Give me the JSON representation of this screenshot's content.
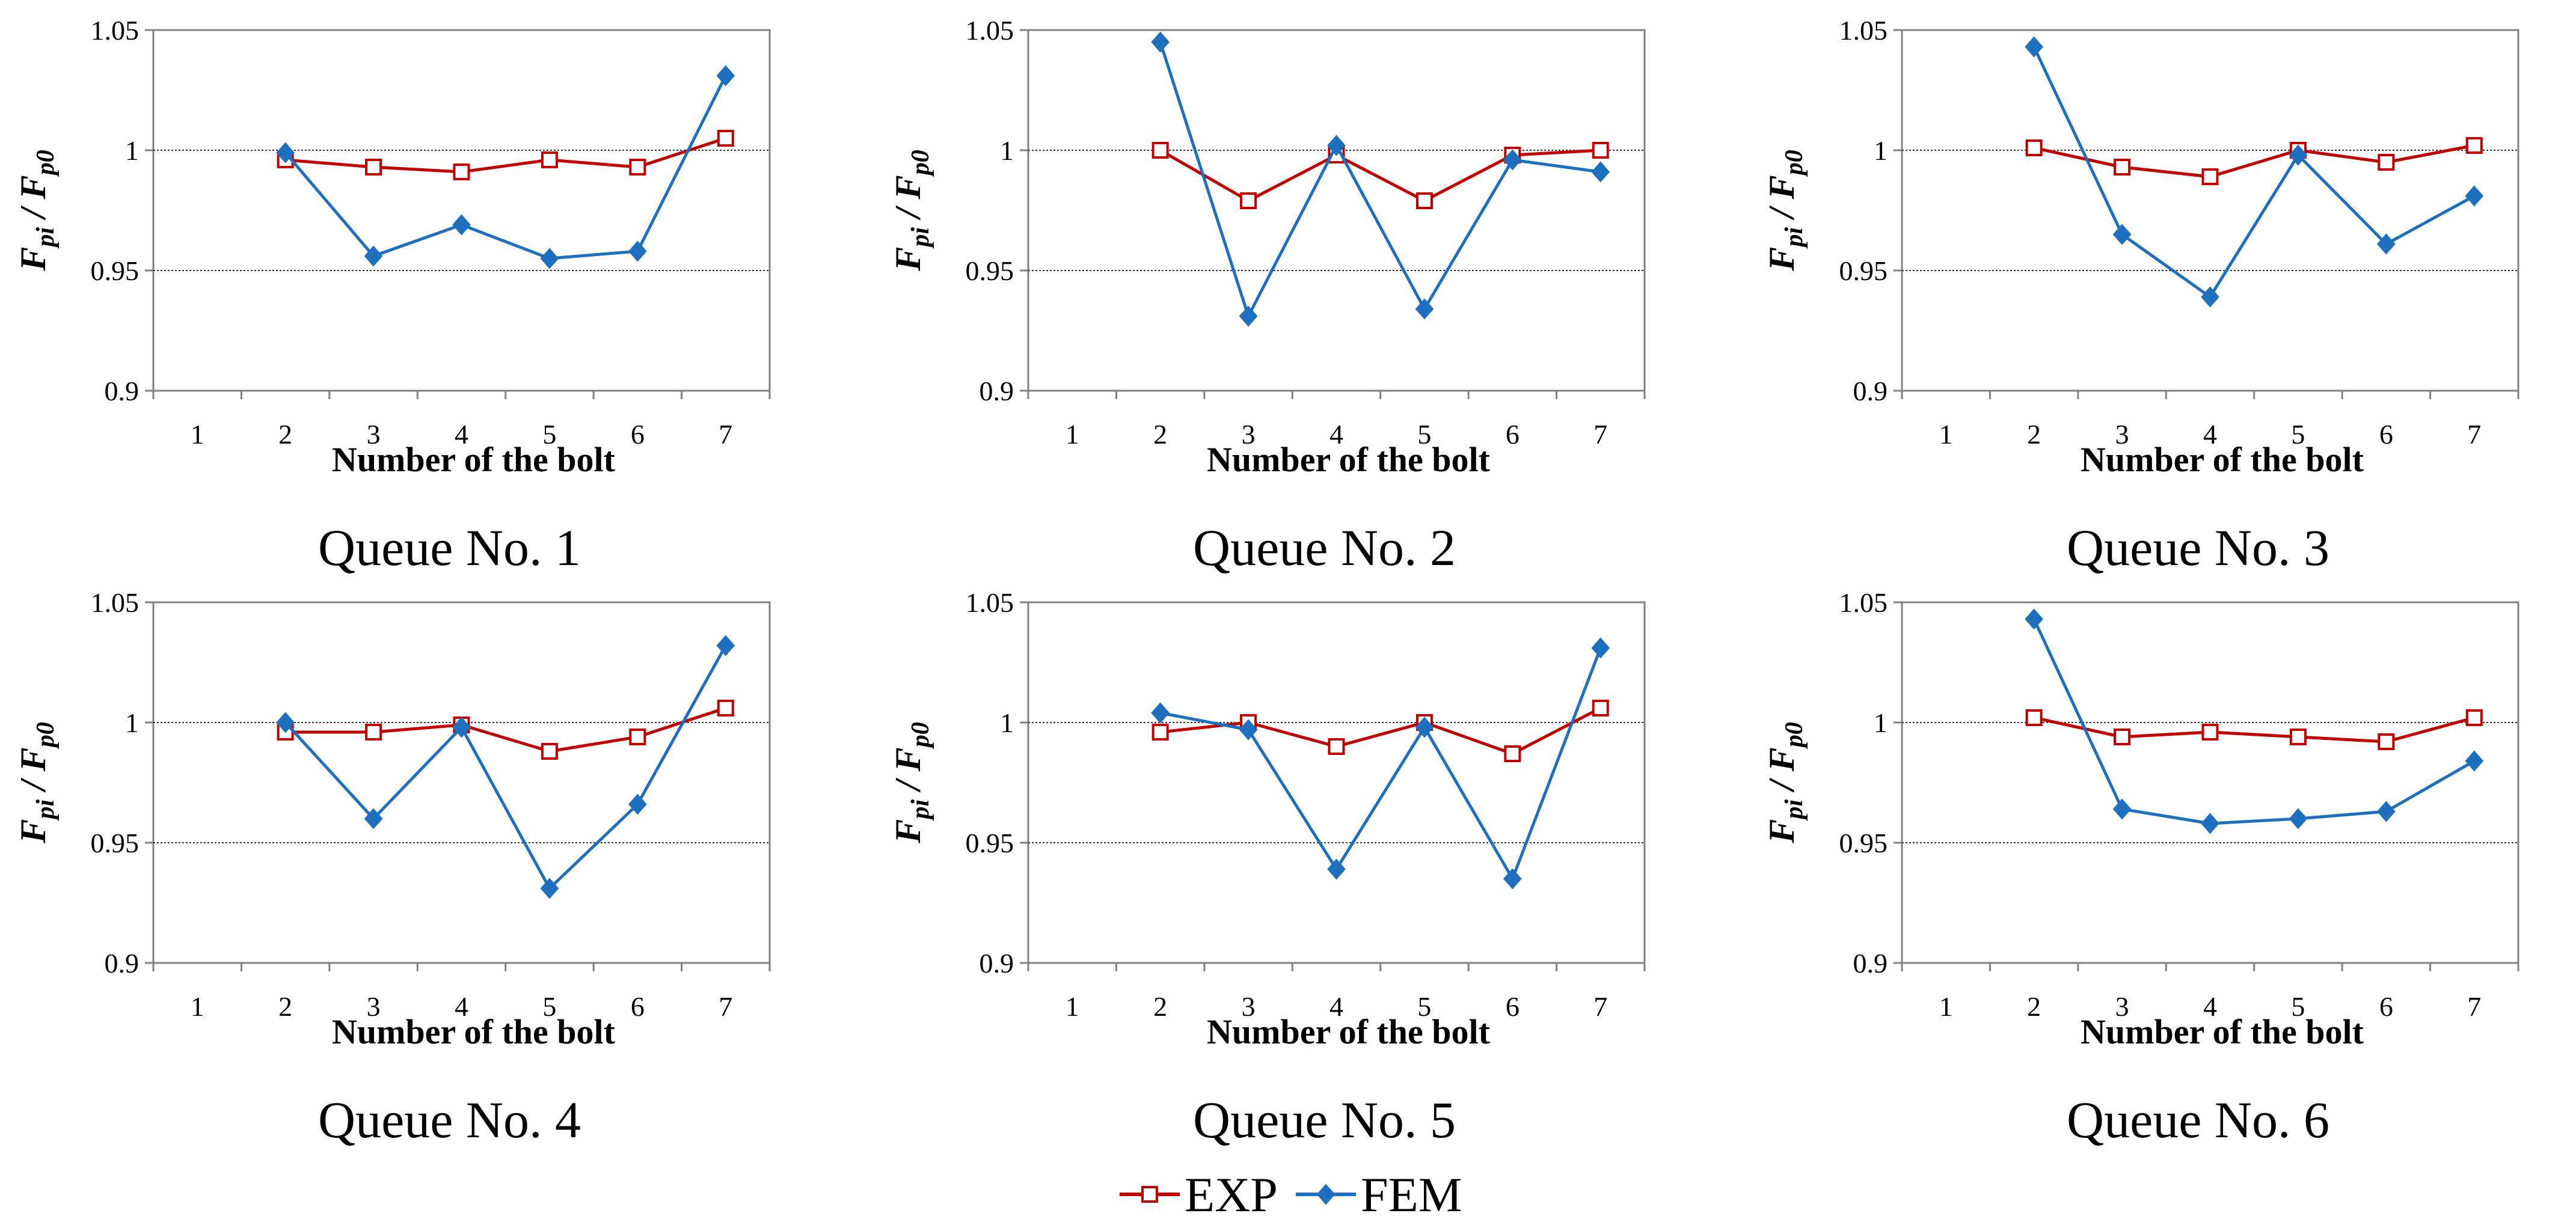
{
  "figure": {
    "legend": [
      {
        "label": "EXP",
        "color": "#c00000",
        "marker": "open-square"
      },
      {
        "label": "FEM",
        "color": "#1f6fbf",
        "marker": "filled-diamond"
      }
    ]
  },
  "chart_data": [
    {
      "type": "line",
      "title": "Queue No. 1",
      "xlabel": "Number of the bolt",
      "ylabel": "Fpi / Fp0",
      "ylabel_parts": [
        "F",
        "pi",
        " / ",
        "F",
        "p0"
      ],
      "categories": [
        "1",
        "2",
        "3",
        "4",
        "5",
        "6",
        "7"
      ],
      "yticks": [
        "0.9",
        "0.95",
        "1",
        "1.05"
      ],
      "ylim": [
        0.9,
        1.05
      ],
      "gridlines": [
        0.95,
        1.0
      ],
      "series": [
        {
          "name": "EXP",
          "color": "#c00000",
          "values": [
            null,
            0.996,
            0.993,
            0.991,
            0.996,
            0.993,
            1.005
          ]
        },
        {
          "name": "FEM",
          "color": "#1f6fbf",
          "values": [
            null,
            0.999,
            0.956,
            0.969,
            0.955,
            0.958,
            1.031
          ]
        }
      ]
    },
    {
      "type": "line",
      "title": "Queue No. 2",
      "xlabel": "Number of the bolt",
      "ylabel": "Fpi / Fp0",
      "ylabel_parts": [
        "F",
        "pi",
        " / ",
        "F",
        "p0"
      ],
      "categories": [
        "1",
        "2",
        "3",
        "4",
        "5",
        "6",
        "7"
      ],
      "yticks": [
        "0.9",
        "0.95",
        "1",
        "1.05"
      ],
      "ylim": [
        0.9,
        1.05
      ],
      "gridlines": [
        0.95,
        1.0
      ],
      "series": [
        {
          "name": "EXP",
          "color": "#c00000",
          "values": [
            null,
            1.0,
            0.979,
            0.998,
            0.979,
            0.998,
            1.0
          ]
        },
        {
          "name": "FEM",
          "color": "#1f6fbf",
          "values": [
            null,
            1.045,
            0.931,
            1.002,
            0.934,
            0.996,
            0.991
          ]
        }
      ]
    },
    {
      "type": "line",
      "title": "Queue No. 3",
      "xlabel": "Number of the bolt",
      "ylabel": "Fpi / Fp0",
      "ylabel_parts": [
        "F",
        "pi",
        " / ",
        "F",
        "p0"
      ],
      "categories": [
        "1",
        "2",
        "3",
        "4",
        "5",
        "6",
        "7"
      ],
      "yticks": [
        "0.9",
        "0.95",
        "1",
        "1.05"
      ],
      "ylim": [
        0.9,
        1.05
      ],
      "gridlines": [
        0.95,
        1.0
      ],
      "series": [
        {
          "name": "EXP",
          "color": "#c00000",
          "values": [
            null,
            1.001,
            0.993,
            0.989,
            1.0,
            0.995,
            1.002
          ]
        },
        {
          "name": "FEM",
          "color": "#1f6fbf",
          "values": [
            null,
            1.043,
            0.965,
            0.939,
            0.998,
            0.961,
            0.981
          ]
        }
      ]
    },
    {
      "type": "line",
      "title": "Queue No. 4",
      "xlabel": "Number of the bolt",
      "ylabel": "Fpi / Fp0",
      "ylabel_parts": [
        "F",
        "pi",
        " / ",
        "F",
        "p0"
      ],
      "categories": [
        "1",
        "2",
        "3",
        "4",
        "5",
        "6",
        "7"
      ],
      "yticks": [
        "0.9",
        "0.95",
        "1",
        "1.05"
      ],
      "ylim": [
        0.9,
        1.05
      ],
      "gridlines": [
        0.95,
        1.0
      ],
      "series": [
        {
          "name": "EXP",
          "color": "#c00000",
          "values": [
            null,
            0.996,
            0.996,
            0.999,
            0.988,
            0.994,
            1.006
          ]
        },
        {
          "name": "FEM",
          "color": "#1f6fbf",
          "values": [
            null,
            1.0,
            0.96,
            0.998,
            0.931,
            0.966,
            1.032
          ]
        }
      ]
    },
    {
      "type": "line",
      "title": "Queue No. 5",
      "xlabel": "Number of the bolt",
      "ylabel": "Fpi / Fp0",
      "ylabel_parts": [
        "F",
        "pi",
        " / ",
        "F",
        "p0"
      ],
      "categories": [
        "1",
        "2",
        "3",
        "4",
        "5",
        "6",
        "7"
      ],
      "yticks": [
        "0.9",
        "0.95",
        "1",
        "1.05"
      ],
      "ylim": [
        0.9,
        1.05
      ],
      "gridlines": [
        0.95,
        1.0
      ],
      "series": [
        {
          "name": "EXP",
          "color": "#c00000",
          "values": [
            null,
            0.996,
            1.0,
            0.99,
            1.0,
            0.987,
            1.006
          ]
        },
        {
          "name": "FEM",
          "color": "#1f6fbf",
          "values": [
            null,
            1.004,
            0.997,
            0.939,
            0.998,
            0.935,
            1.031
          ]
        }
      ]
    },
    {
      "type": "line",
      "title": "Queue No. 6",
      "xlabel": "Number of the bolt",
      "ylabel": "Fpi / Fp0",
      "ylabel_parts": [
        "F",
        "pi",
        " / ",
        "F",
        "p0"
      ],
      "categories": [
        "1",
        "2",
        "3",
        "4",
        "5",
        "6",
        "7"
      ],
      "yticks": [
        "0.9",
        "0.95",
        "1",
        "1.05"
      ],
      "ylim": [
        0.9,
        1.05
      ],
      "gridlines": [
        0.95,
        1.0
      ],
      "series": [
        {
          "name": "EXP",
          "color": "#c00000",
          "values": [
            null,
            1.002,
            0.994,
            0.996,
            0.994,
            0.992,
            1.002
          ]
        },
        {
          "name": "FEM",
          "color": "#1f6fbf",
          "values": [
            null,
            1.043,
            0.964,
            0.958,
            0.96,
            0.963,
            0.984
          ]
        }
      ]
    }
  ]
}
